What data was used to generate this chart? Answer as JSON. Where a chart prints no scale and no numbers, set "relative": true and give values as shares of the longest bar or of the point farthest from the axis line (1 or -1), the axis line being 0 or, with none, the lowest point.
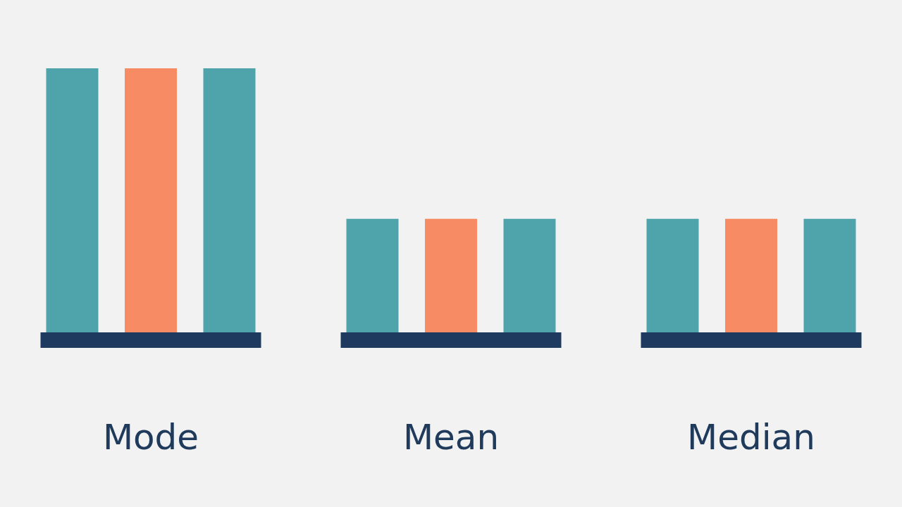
{
  "chart_data": {
    "type": "bar",
    "relative": true,
    "categories": [
      "Mode",
      "Mean",
      "Median"
    ],
    "series": [
      {
        "color": "#4fa3ab",
        "values": [
          1,
          0.43,
          0.43
        ]
      },
      {
        "color": "#f78b64",
        "values": [
          1,
          0.43,
          0.43
        ]
      },
      {
        "color": "#4fa3ab",
        "values": [
          1,
          0.43,
          0.43
        ]
      }
    ]
  }
}
